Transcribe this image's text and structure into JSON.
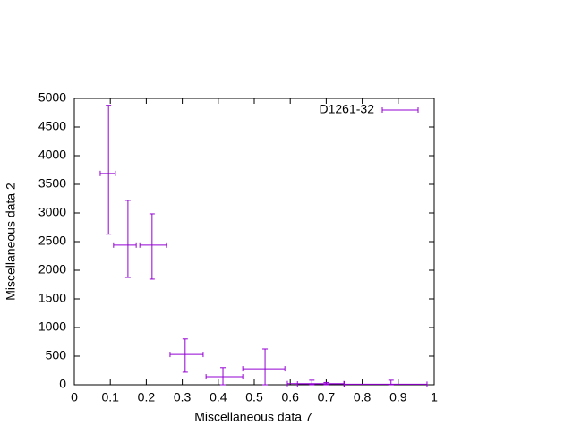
{
  "chart_data": {
    "type": "errorbar",
    "xlabel": "Miscellaneous data 7",
    "ylabel": "Miscellaneous data 2",
    "xlim": [
      0,
      1
    ],
    "ylim": [
      0,
      5000
    ],
    "xticks": [
      0,
      0.1,
      0.2,
      0.3,
      0.4,
      0.5,
      0.6,
      0.7,
      0.8,
      0.9,
      1
    ],
    "yticks": [
      0,
      500,
      1000,
      1500,
      2000,
      2500,
      3000,
      3500,
      4000,
      4500,
      5000
    ],
    "legend": "top-right",
    "series": [
      {
        "name": "D1261-32",
        "color": "#9400d3",
        "x": [
          0.095,
          0.149,
          0.216,
          0.308,
          0.413,
          0.53,
          0.66,
          0.7,
          0.88
        ],
        "xlow": [
          0.072,
          0.109,
          0.182,
          0.266,
          0.366,
          0.468,
          0.592,
          0.62,
          0.75
        ],
        "xhigh": [
          0.114,
          0.172,
          0.256,
          0.358,
          0.468,
          0.585,
          0.749,
          0.75,
          0.98
        ],
        "values": [
          3690,
          2440,
          2440,
          530,
          140,
          280,
          20,
          15,
          10
        ],
        "ylow": [
          2630,
          1875,
          1845,
          220,
          0,
          0,
          0,
          0,
          0
        ],
        "yhigh": [
          4880,
          3220,
          2985,
          800,
          300,
          625,
          80,
          40,
          80
        ]
      }
    ]
  }
}
